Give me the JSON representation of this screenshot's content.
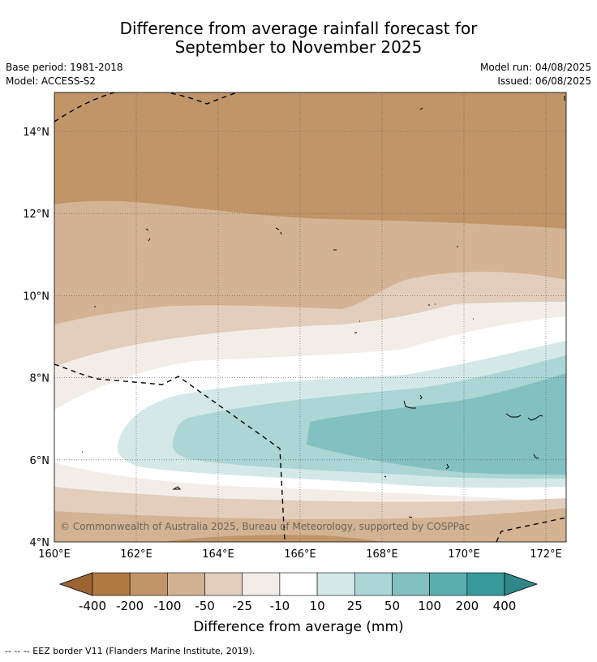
{
  "title_line1": "Difference from average rainfall forecast for",
  "title_line2": "September to November 2025",
  "meta": {
    "base_period": "Base period: 1981-2018",
    "model": "Model: ACCESS-S2",
    "model_run": "Model run: 04/08/2025",
    "issued": "Issued: 06/08/2025"
  },
  "map": {
    "lat_labels": [
      "14°N",
      "12°N",
      "10°N",
      "8°N",
      "6°N",
      "4°N"
    ],
    "lon_labels": [
      "160°E",
      "162°E",
      "164°E",
      "166°E",
      "168°E",
      "170°E",
      "172°E"
    ],
    "lat_values": [
      14,
      12,
      10,
      8,
      6,
      4
    ],
    "lon_values": [
      160,
      162,
      164,
      166,
      168,
      170,
      172
    ],
    "copyright": "© Commonwealth of Australia 2025, Bureau of Meteorology, supported by COSPPac"
  },
  "colorbar": {
    "label": "Difference from average (mm)",
    "ticks": [
      "-400",
      "-200",
      "-100",
      "-50",
      "-25",
      "-10",
      "10",
      "25",
      "50",
      "100",
      "200",
      "400"
    ],
    "colors": [
      "#9b6432",
      "#b07a43",
      "#c09669",
      "#d3b393",
      "#e3cebd",
      "#f2ede7",
      "#ffffff",
      "#d4e8e8",
      "#acd5d5",
      "#83c0c1",
      "#5aaeae",
      "#36999a",
      "#2f8788"
    ]
  },
  "footer": "--  --  -- EEZ border V11 (Flanders Marine Institute, 2019)."
}
